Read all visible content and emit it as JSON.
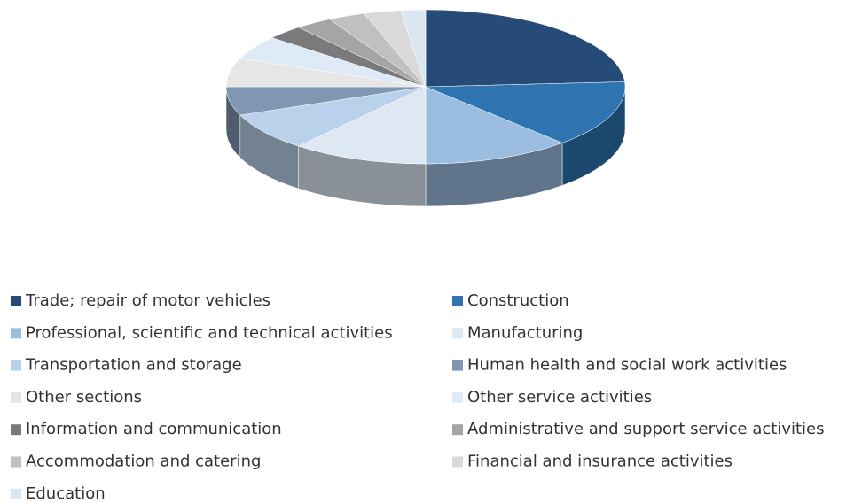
{
  "chart_data": {
    "type": "pie3d",
    "categories": [
      "Trade; repair of motor vehicles",
      "Construction",
      "Professional, scientific and technical activities",
      "Manufacturing",
      "Transportation and storage",
      "Human health and social work activities",
      "Other sections",
      "Other service activities",
      "Information and communication",
      "Administrative and support service activities",
      "Accommodation and catering",
      "Financial and insurance activities",
      "Education"
    ],
    "values": [
      24,
      14,
      12,
      11,
      8,
      6,
      6,
      5,
      3,
      3,
      3,
      3,
      2
    ],
    "colors": [
      "#264b78",
      "#2f74b0",
      "#9bbde0",
      "#dde8f3",
      "#b9d1ea",
      "#7f97b2",
      "#e6e6e6",
      "#deebf7",
      "#7a7a7a",
      "#a5a5a5",
      "#c0c0c0",
      "#d9d9d9",
      "#dae6f2"
    ],
    "legend": "bottom"
  }
}
